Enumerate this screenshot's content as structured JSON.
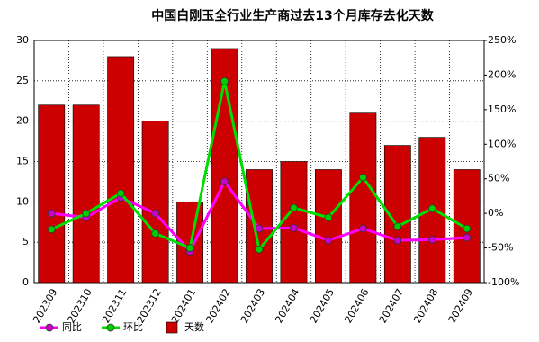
{
  "chart_data": {
    "type": "bar",
    "title": "中国白刚玉全行业生产商过去13个月库存去化天数",
    "categories": [
      "202309",
      "202310",
      "202311",
      "202312",
      "202401",
      "202402",
      "202403",
      "202404",
      "202405",
      "202406",
      "202407",
      "202408",
      "202409"
    ],
    "series": [
      {
        "name": "同比",
        "type": "line",
        "axis": "y2",
        "color": "#ff00ff",
        "marker_color": "#cc00cc",
        "values": [
          0,
          -6,
          23,
          0,
          -55,
          46,
          -22,
          -21,
          -39,
          -22,
          -39,
          -38,
          -35
        ]
      },
      {
        "name": "环比",
        "type": "line",
        "axis": "y2",
        "color": "#00dd00",
        "marker_color": "#00cc00",
        "values": [
          -23,
          0,
          29,
          -29,
          -50,
          191,
          -52,
          8,
          -6,
          52,
          -19,
          7,
          -22
        ]
      },
      {
        "name": "天数",
        "type": "bar",
        "axis": "y",
        "color": "#cc0000",
        "values": [
          22,
          22,
          28,
          20,
          10,
          29,
          14,
          15,
          14,
          21,
          17,
          18,
          14
        ]
      }
    ],
    "ylim": [
      0,
      30
    ],
    "yticks": [
      0,
      5,
      10,
      15,
      20,
      25,
      30
    ],
    "y2lim": [
      -100,
      250
    ],
    "y2ticks": [
      {
        "value": -100,
        "label": "-100%"
      },
      {
        "value": -50,
        "label": "-50%"
      },
      {
        "value": 0,
        "label": "0%"
      },
      {
        "value": 50,
        "label": "50%"
      },
      {
        "value": 100,
        "label": "100%"
      },
      {
        "value": 150,
        "label": "150%"
      },
      {
        "value": 200,
        "label": "200%"
      },
      {
        "value": 250,
        "label": "250%"
      }
    ],
    "grid": true
  }
}
